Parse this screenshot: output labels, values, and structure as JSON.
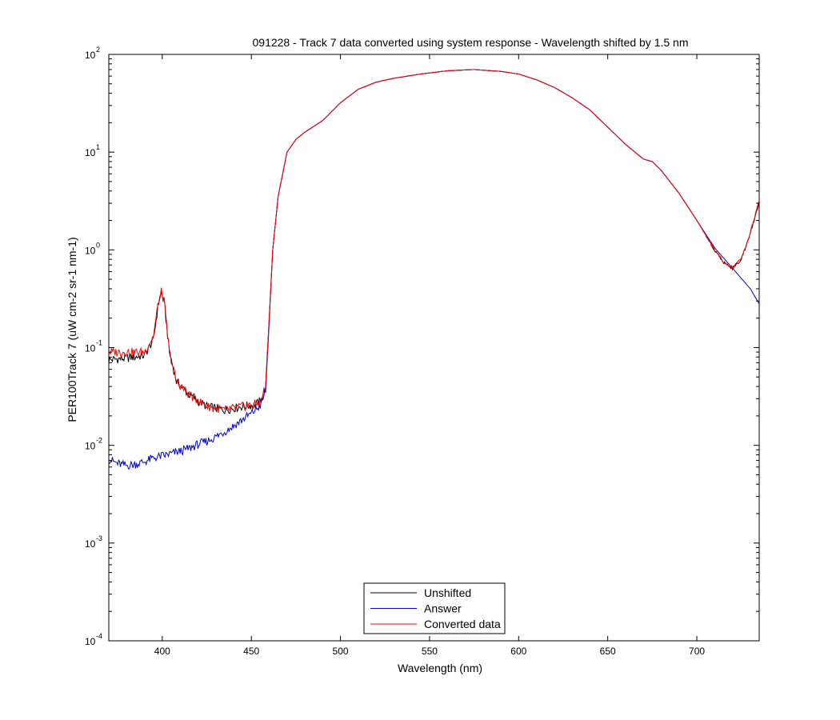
{
  "chart_data": {
    "type": "line",
    "title": "091228 - Track 7 data converted using system response - Wavelength shifted by 1.5 nm",
    "xlabel": "Wavelength (nm)",
    "ylabel": "PER100Track 7 (uW cm-2 sr-1 nm-1)",
    "xlim": [
      370,
      735
    ],
    "ylim": [
      0.0001,
      100
    ],
    "yscale": "log",
    "xticks": [
      400,
      450,
      500,
      550,
      600,
      650,
      700
    ],
    "yticks": [
      {
        "value": 0.0001,
        "base": "10",
        "exp": "-4"
      },
      {
        "value": 0.001,
        "base": "10",
        "exp": "-3"
      },
      {
        "value": 0.01,
        "base": "10",
        "exp": "-2"
      },
      {
        "value": 0.1,
        "base": "10",
        "exp": "-1"
      },
      {
        "value": 1,
        "base": "10",
        "exp": "0"
      },
      {
        "value": 10,
        "base": "10",
        "exp": "1"
      },
      {
        "value": 100,
        "base": "10",
        "exp": "2"
      }
    ],
    "grid": false,
    "legend_position": "bottom-center",
    "series": [
      {
        "name": "Unshifted",
        "color": "#000000",
        "points": [
          [
            370,
            0.075
          ],
          [
            380,
            0.078
          ],
          [
            390,
            0.083
          ],
          [
            395,
            0.12
          ],
          [
            398,
            0.3
          ],
          [
            399.5,
            0.36
          ],
          [
            401,
            0.3
          ],
          [
            404,
            0.09
          ],
          [
            408,
            0.045
          ],
          [
            415,
            0.033
          ],
          [
            425,
            0.025
          ],
          [
            435,
            0.023
          ],
          [
            445,
            0.025
          ],
          [
            452,
            0.026
          ],
          [
            455,
            0.028
          ],
          [
            458,
            0.04
          ],
          [
            460,
            0.2
          ],
          [
            462,
            1.0
          ],
          [
            465,
            3.5
          ],
          [
            470,
            10
          ],
          [
            475,
            13.5
          ],
          [
            480,
            16
          ],
          [
            490,
            21
          ],
          [
            500,
            32
          ],
          [
            510,
            44
          ],
          [
            520,
            52
          ],
          [
            530,
            57
          ],
          [
            545,
            63
          ],
          [
            560,
            68
          ],
          [
            575,
            70
          ],
          [
            590,
            67
          ],
          [
            600,
            63
          ],
          [
            610,
            55
          ],
          [
            620,
            46
          ],
          [
            630,
            36
          ],
          [
            640,
            27
          ],
          [
            650,
            18
          ],
          [
            660,
            12
          ],
          [
            670,
            8.5
          ],
          [
            675,
            8
          ],
          [
            680,
            6.5
          ],
          [
            690,
            3.8
          ],
          [
            700,
            2.0
          ],
          [
            710,
            1.0
          ],
          [
            715,
            0.75
          ],
          [
            720,
            0.65
          ],
          [
            725,
            0.8
          ],
          [
            730,
            1.5
          ],
          [
            735,
            3.0
          ]
        ]
      },
      {
        "name": "Answer",
        "color": "#0000cc",
        "points": [
          [
            370,
            0.0072
          ],
          [
            375,
            0.0065
          ],
          [
            380,
            0.0062
          ],
          [
            385,
            0.0064
          ],
          [
            390,
            0.0068
          ],
          [
            395,
            0.0074
          ],
          [
            400,
            0.0078
          ],
          [
            405,
            0.0082
          ],
          [
            410,
            0.0087
          ],
          [
            415,
            0.0093
          ],
          [
            420,
            0.0102
          ],
          [
            425,
            0.011
          ],
          [
            430,
            0.0122
          ],
          [
            435,
            0.0138
          ],
          [
            440,
            0.0158
          ],
          [
            445,
            0.0183
          ],
          [
            450,
            0.0212
          ],
          [
            455,
            0.0255
          ],
          [
            458,
            0.035
          ],
          [
            460,
            0.18
          ],
          [
            462,
            1.0
          ],
          [
            465,
            3.5
          ],
          [
            470,
            10
          ],
          [
            475,
            13.5
          ],
          [
            480,
            16
          ],
          [
            490,
            21
          ],
          [
            500,
            32
          ],
          [
            510,
            44
          ],
          [
            520,
            52
          ],
          [
            530,
            57
          ],
          [
            545,
            63
          ],
          [
            560,
            68
          ],
          [
            575,
            70
          ],
          [
            590,
            67
          ],
          [
            600,
            63
          ],
          [
            610,
            55
          ],
          [
            620,
            46
          ],
          [
            630,
            36
          ],
          [
            640,
            27
          ],
          [
            650,
            18
          ],
          [
            660,
            12
          ],
          [
            670,
            8.5
          ],
          [
            675,
            8
          ],
          [
            680,
            6.5
          ],
          [
            690,
            3.8
          ],
          [
            700,
            2.0
          ],
          [
            710,
            1.05
          ],
          [
            720,
            0.65
          ],
          [
            730,
            0.4
          ],
          [
            735,
            0.28
          ]
        ]
      },
      {
        "name": "Converted data",
        "color": "#ff0000",
        "points": [
          [
            370,
            0.09
          ],
          [
            380,
            0.09
          ],
          [
            390,
            0.09
          ],
          [
            395,
            0.13
          ],
          [
            398,
            0.3
          ],
          [
            399.5,
            0.37
          ],
          [
            401,
            0.3
          ],
          [
            404,
            0.09
          ],
          [
            408,
            0.045
          ],
          [
            415,
            0.033
          ],
          [
            425,
            0.025
          ],
          [
            435,
            0.023
          ],
          [
            445,
            0.025
          ],
          [
            452,
            0.026
          ],
          [
            455,
            0.028
          ],
          [
            458,
            0.04
          ],
          [
            460,
            0.2
          ],
          [
            462,
            1.0
          ],
          [
            465,
            3.5
          ],
          [
            470,
            10
          ],
          [
            475,
            13.5
          ],
          [
            480,
            16
          ],
          [
            490,
            21
          ],
          [
            500,
            32
          ],
          [
            510,
            44
          ],
          [
            520,
            52
          ],
          [
            530,
            57
          ],
          [
            545,
            63
          ],
          [
            560,
            68
          ],
          [
            575,
            70
          ],
          [
            590,
            67
          ],
          [
            600,
            63
          ],
          [
            610,
            55
          ],
          [
            620,
            46
          ],
          [
            630,
            36
          ],
          [
            640,
            27
          ],
          [
            650,
            18
          ],
          [
            660,
            12
          ],
          [
            670,
            8.5
          ],
          [
            675,
            8
          ],
          [
            680,
            6.5
          ],
          [
            690,
            3.8
          ],
          [
            700,
            2.0
          ],
          [
            710,
            1.0
          ],
          [
            715,
            0.75
          ],
          [
            720,
            0.65
          ],
          [
            725,
            0.8
          ],
          [
            730,
            1.5
          ],
          [
            735,
            3.2
          ]
        ]
      }
    ]
  }
}
